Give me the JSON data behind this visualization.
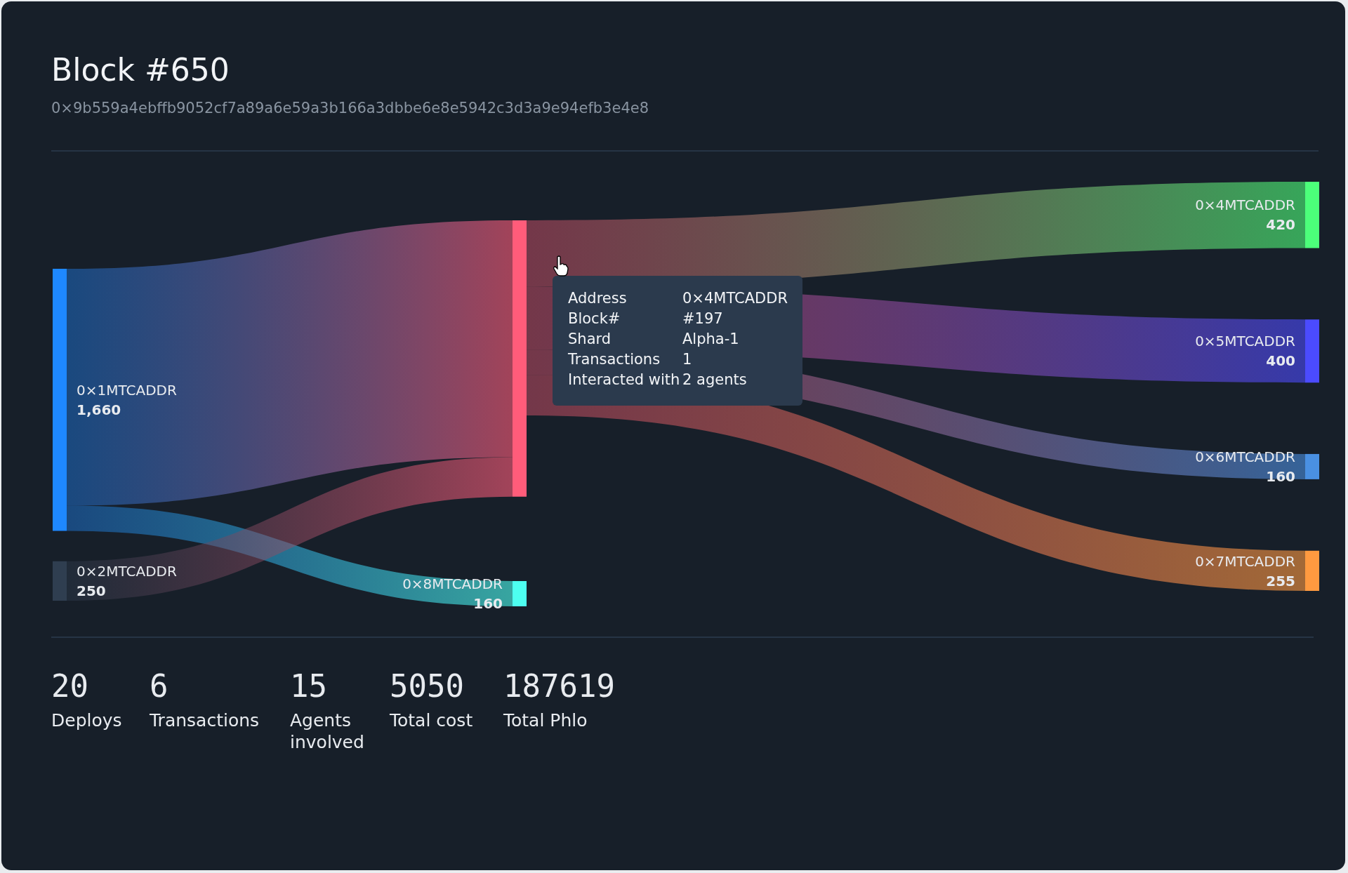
{
  "chart_data": [
    {
      "type": "other",
      "title": "Block #650",
      "subtitle": "0×9b559a4ebffb9052cf7a89a6e59a3b166a3dbbe6e8e5942c3d3a9e94efb3e4e8",
      "categories": [
        "0×1MTCADDR",
        "0×2MTCADDR",
        null,
        "0×8MTCADDR",
        "0×4MTCADDR",
        "0×5MTCADDR",
        "0×6MTCADDR",
        "0×7MTCADDR"
      ],
      "values": [
        1660,
        250,
        null,
        160,
        420,
        400,
        160,
        255
      ],
      "colors": [
        "#1e88ff",
        "#2f3e50",
        "#ff5c7a",
        "#4dfff0",
        "#4cff7a",
        "#4b4bff",
        "#4a90e2",
        "#ff9a40"
      ],
      "series": [
        {
          "x": [
            null,
            "0×8MTCADDR"
          ],
          "values": [
            null,
            null
          ]
        },
        {
          "x": [
            null
          ],
          "values": [
            null
          ]
        },
        {
          "x": [
            "0×4MTCADDR",
            "0×5MTCADDR",
            "0×6MTCADDR",
            "0×7MTCADDR"
          ],
          "values": [
            null,
            null,
            null,
            null
          ]
        }
      ],
      "value_labels": [
        "1,660",
        "250",
        null,
        "160",
        "420",
        "400",
        "160",
        "255"
      ],
      "annotations": [
        "Address",
        "0×4MTCADDR",
        "Block#",
        "#197",
        "Shard",
        "Alpha-1",
        "Transactions",
        "1",
        "Interacted with",
        "2 agents"
      ]
    },
    {
      "type": "other",
      "categories": [
        "Deploys",
        "Transactions",
        "Agents involved",
        "Total cost",
        "Total Phlo"
      ],
      "values": [
        20,
        6,
        15,
        5050,
        187619
      ],
      "data_labels": true
    }
  ]
}
